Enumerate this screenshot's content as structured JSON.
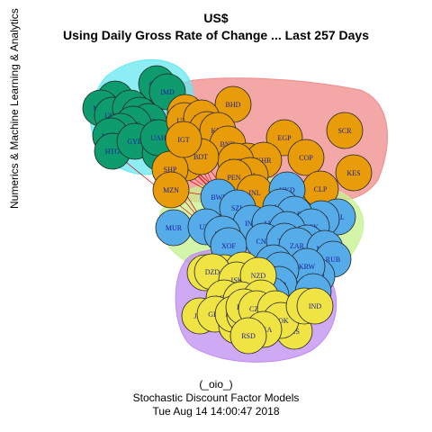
{
  "title": "US$",
  "subtitle": "Using Daily Gross Rate of Change ... Last 257 Days",
  "y_axis_label": "Numerics & Machine Learning & Analytics",
  "footer": {
    "line1": "(_oio_)",
    "line2": "Stochastic Discount Factor Models",
    "line3": "Tue Aug 14 14:00:47 2018"
  },
  "clusters": [
    {
      "id": "green",
      "fill": "#0e9c6e",
      "hull": "#66e8f0"
    },
    {
      "id": "orange",
      "fill": "#e89c0a",
      "hull": "#f08a8a"
    },
    {
      "id": "blue",
      "fill": "#55ace8",
      "hull": "#c4f28c"
    },
    {
      "id": "yellow",
      "fill": "#f0e444",
      "hull": "#c08cf0"
    }
  ],
  "nodes": [
    {
      "label": "OHS",
      "group": "green"
    },
    {
      "label": "IMD",
      "group": "green"
    },
    {
      "label": "PYG",
      "group": "green"
    },
    {
      "label": "MDL",
      "group": "green"
    },
    {
      "label": "UGX",
      "group": "green"
    },
    {
      "label": "ANG",
      "group": "green"
    },
    {
      "label": "BZD",
      "group": "green"
    },
    {
      "label": "KWD",
      "group": "green"
    },
    {
      "label": "GHS",
      "group": "green"
    },
    {
      "label": "CRC",
      "group": "green"
    },
    {
      "label": "MMK",
      "group": "green"
    },
    {
      "label": "HTG",
      "group": "green"
    },
    {
      "label": "GYD",
      "group": "green"
    },
    {
      "label": "NPR",
      "group": "green"
    },
    {
      "label": "UAH",
      "group": "green"
    },
    {
      "label": "BHD",
      "group": "orange"
    },
    {
      "label": "TTD",
      "group": "orange"
    },
    {
      "label": "UYU",
      "group": "orange"
    },
    {
      "label": "VND",
      "group": "orange"
    },
    {
      "label": "LKR",
      "group": "orange"
    },
    {
      "label": "KZS",
      "group": "orange"
    },
    {
      "label": "BND",
      "group": "orange"
    },
    {
      "label": "EGP",
      "group": "orange"
    },
    {
      "label": "SCR",
      "group": "orange"
    },
    {
      "label": "COP",
      "group": "orange"
    },
    {
      "label": "MAD",
      "group": "orange"
    },
    {
      "label": "KHR",
      "group": "orange"
    },
    {
      "label": "AMD",
      "group": "orange"
    },
    {
      "label": "ALL",
      "group": "orange"
    },
    {
      "label": "KES",
      "group": "orange"
    },
    {
      "label": "SDG",
      "group": "orange"
    },
    {
      "label": "BDT",
      "group": "orange"
    },
    {
      "label": "SHP",
      "group": "orange"
    },
    {
      "label": "PEN",
      "group": "orange"
    },
    {
      "label": "CLP",
      "group": "orange"
    },
    {
      "label": "MZN",
      "group": "orange"
    },
    {
      "label": "INL",
      "group": "orange"
    },
    {
      "label": "IGT",
      "group": "orange"
    },
    {
      "label": "HKD",
      "group": "blue"
    },
    {
      "label": "BWP",
      "group": "blue"
    },
    {
      "label": "SZL",
      "group": "blue"
    },
    {
      "label": "LSL",
      "group": "blue"
    },
    {
      "label": "BRL",
      "group": "blue"
    },
    {
      "label": "PHP",
      "group": "blue"
    },
    {
      "label": "NAD",
      "group": "blue"
    },
    {
      "label": "PGK",
      "group": "blue"
    },
    {
      "label": "MUR",
      "group": "blue"
    },
    {
      "label": "UZS",
      "group": "blue"
    },
    {
      "label": "INR",
      "group": "blue"
    },
    {
      "label": "AKS",
      "group": "blue"
    },
    {
      "label": "KMF",
      "group": "blue"
    },
    {
      "label": "TWD",
      "group": "blue"
    },
    {
      "label": "CNY",
      "group": "blue"
    },
    {
      "label": "TRY",
      "group": "blue"
    },
    {
      "label": "IDR",
      "group": "blue"
    },
    {
      "label": "ZAR",
      "group": "blue"
    },
    {
      "label": "XOF",
      "group": "blue"
    },
    {
      "label": "MXN",
      "group": "blue"
    },
    {
      "label": "RUB",
      "group": "blue"
    },
    {
      "label": "MYR",
      "group": "blue"
    },
    {
      "label": "KRW",
      "group": "blue"
    },
    {
      "label": "THB",
      "group": "blue"
    },
    {
      "label": "AUD",
      "group": "blue"
    },
    {
      "label": "SGD",
      "group": "blue"
    },
    {
      "label": "CAD",
      "group": "blue"
    },
    {
      "label": "PLN",
      "group": "blue"
    },
    {
      "label": "CHF",
      "group": "yellow"
    },
    {
      "label": "XAF",
      "group": "yellow"
    },
    {
      "label": "XPF",
      "group": "yellow"
    },
    {
      "label": "DZD",
      "group": "yellow"
    },
    {
      "label": "ISK",
      "group": "yellow"
    },
    {
      "label": "NZD",
      "group": "yellow"
    },
    {
      "label": "MKD",
      "group": "yellow"
    },
    {
      "label": "HRK",
      "group": "yellow"
    },
    {
      "label": "HUF",
      "group": "yellow"
    },
    {
      "label": "JPY",
      "group": "yellow"
    },
    {
      "label": "GBP",
      "group": "yellow"
    },
    {
      "label": "RON",
      "group": "yellow"
    },
    {
      "label": "BGN",
      "group": "yellow"
    },
    {
      "label": "DKK",
      "group": "yellow"
    },
    {
      "label": "EUR",
      "group": "yellow"
    },
    {
      "label": "CZK",
      "group": "yellow"
    },
    {
      "label": "SEK",
      "group": "yellow"
    },
    {
      "label": "ILS",
      "group": "yellow"
    },
    {
      "label": "NOK",
      "group": "yellow"
    },
    {
      "label": "MGA",
      "group": "yellow"
    },
    {
      "label": "RSD",
      "group": "yellow"
    },
    {
      "label": "INR2",
      "group": "yellow"
    },
    {
      "label": "IND",
      "group": "yellow"
    }
  ]
}
